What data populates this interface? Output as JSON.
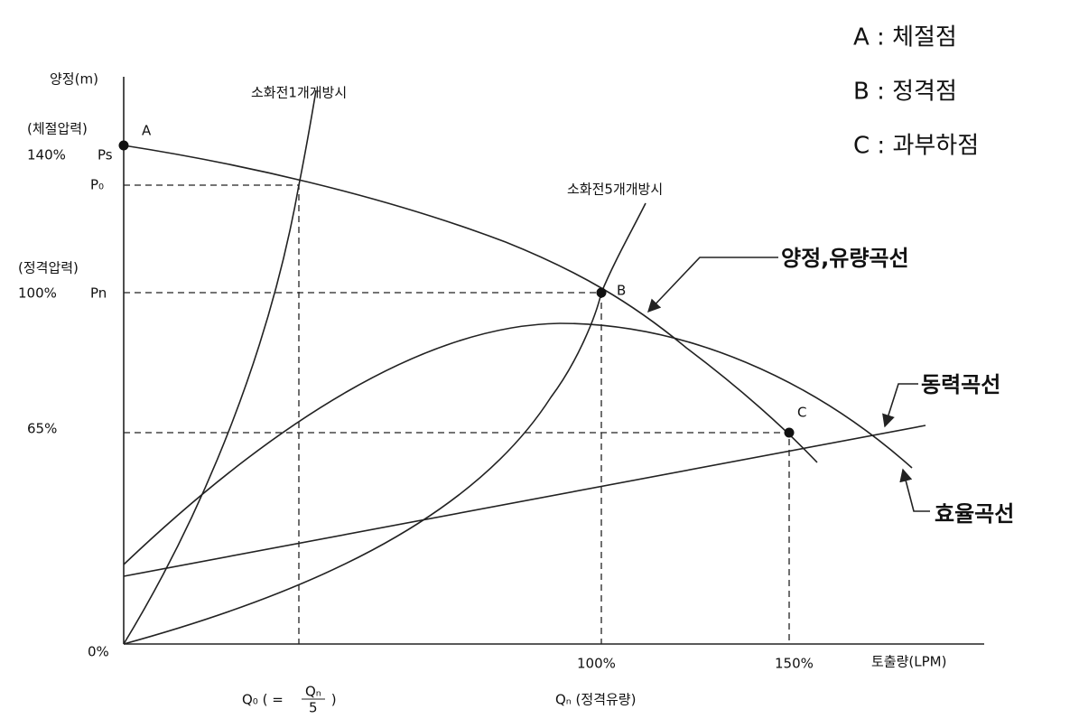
{
  "legend": [
    "A : 체절점",
    "B : 정격점",
    "C : 과부하점"
  ],
  "y_axis": {
    "title": "양정(m)",
    "shutoff_note": "(체절압력)",
    "shutoff_pct": "140%",
    "shutoff_symbol": "Ps",
    "p0_symbol": "P₀",
    "rated_note": "(정격압력)",
    "rated_pct": "100%",
    "rated_symbol": "Pn",
    "overload_pct": "65%",
    "origin": "0%"
  },
  "x_axis": {
    "title": "토출량(LPM)",
    "rated_pct": "100%",
    "overload_pct": "150%",
    "q0_prefix": "Q₀ ( = ",
    "q0_numerator": "Qₙ",
    "q0_denominator": "5",
    "q0_suffix": " )",
    "qn_label": "Qₙ (정격유량)"
  },
  "points": [
    "A",
    "B",
    "C"
  ],
  "curves": {
    "one_hydrant": "소화전1개개방시",
    "five_hydrants": "소화전5개개방시",
    "head_flow": "양정,유량곡선",
    "power": "동력곡선",
    "efficiency": "효율곡선"
  }
}
